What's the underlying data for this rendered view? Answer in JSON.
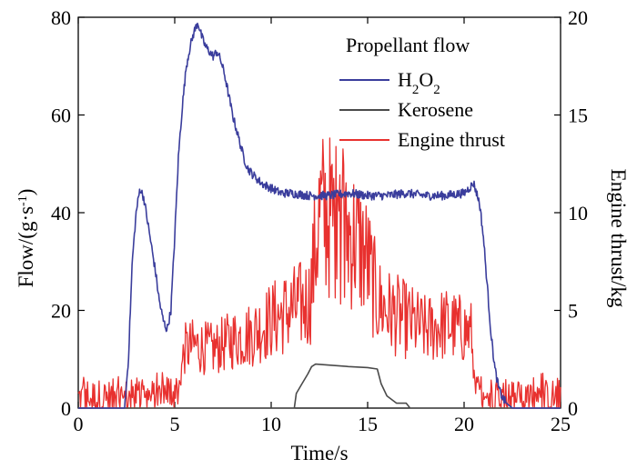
{
  "chart_data": {
    "type": "line",
    "legend": {
      "title": "Propellant flow",
      "placement": "top-right"
    },
    "x_axis": {
      "label": "Time/s",
      "range": [
        0,
        25
      ],
      "ticks": [
        0,
        5,
        10,
        15,
        20,
        25
      ]
    },
    "y_axis_left": {
      "label": "Flow/(g·s⁻¹)",
      "label_main": "Flow/(g·s",
      "label_sup": "-1",
      "label_end": ")",
      "range": [
        0,
        80
      ],
      "ticks": [
        0,
        20,
        40,
        60,
        80
      ]
    },
    "y_axis_right": {
      "label": "Engine thrust/kg",
      "range": [
        0,
        20
      ],
      "ticks": [
        0,
        5,
        10,
        15,
        20
      ]
    },
    "series": [
      {
        "name": "H2O2",
        "name_main": "H",
        "name_sub1": "2",
        "name_mid": "O",
        "name_sub2": "2",
        "axis": "left",
        "color": "#3a3d9c",
        "x": [
          0,
          2.4,
          2.6,
          2.8,
          3.0,
          3.2,
          3.4,
          3.6,
          3.8,
          4.0,
          4.2,
          4.4,
          4.6,
          4.8,
          5.0,
          5.2,
          5.4,
          5.6,
          5.8,
          6.0,
          6.2,
          6.4,
          6.6,
          6.8,
          7.0,
          7.2,
          7.4,
          7.6,
          7.8,
          8.0,
          8.2,
          8.4,
          8.6,
          8.8,
          9.0,
          9.5,
          10.0,
          10.5,
          11.0,
          12.0,
          13.0,
          14.0,
          15.0,
          16.0,
          17.0,
          18.0,
          19.0,
          20.0,
          20.5,
          20.8,
          21.0,
          21.2,
          21.4,
          21.6,
          21.8,
          22.0,
          22.2,
          22.5,
          25.0
        ],
        "y": [
          0,
          0,
          10,
          30,
          40,
          45,
          43,
          38,
          33,
          28,
          22,
          18,
          16,
          20,
          35,
          52,
          62,
          70,
          74,
          77,
          79,
          76,
          74,
          73,
          72,
          73,
          71,
          68,
          64,
          60,
          57,
          54,
          51,
          49,
          48,
          46,
          45,
          44,
          44,
          43.5,
          43.5,
          44,
          43.5,
          43.5,
          44,
          43.5,
          43.5,
          44,
          46,
          42,
          35,
          25,
          15,
          8,
          4,
          2,
          1,
          0,
          0
        ]
      },
      {
        "name": "Kerosene",
        "axis": "left",
        "color": "#4a4a4a",
        "x": [
          0,
          11.2,
          11.3,
          11.6,
          11.9,
          12.1,
          12.3,
          13.0,
          14.0,
          15.0,
          15.5,
          15.7,
          16.0,
          16.5,
          17.0,
          17.2,
          25.0
        ],
        "y": [
          0,
          0,
          3,
          5,
          7,
          8.5,
          9,
          8.8,
          8.5,
          8.3,
          8,
          5,
          2.5,
          1,
          1,
          0,
          0
        ]
      },
      {
        "name": "Engine thrust",
        "axis": "right",
        "color": "#e8312f",
        "x": [
          0,
          4,
          5.2,
          5.5,
          6.0,
          7.0,
          8.0,
          9.0,
          10.0,
          11.0,
          12.0,
          12.5,
          13.0,
          13.5,
          14.0,
          14.5,
          15.0,
          15.5,
          16.0,
          17.0,
          18.0,
          19.0,
          20.0,
          20.4,
          20.5,
          21.0,
          22.0,
          23.0,
          24.0,
          25.0
        ],
        "y": [
          0.5,
          0.5,
          1.0,
          3.0,
          3.2,
          3.0,
          3.5,
          3.8,
          4.5,
          5.0,
          5.5,
          10.0,
          9.8,
          9.5,
          9.0,
          8.5,
          7.5,
          5.5,
          5.0,
          4.5,
          4.0,
          4.3,
          4.0,
          3.8,
          1.0,
          0.6,
          0.5,
          0.5,
          0.5,
          0.5
        ]
      }
    ]
  }
}
